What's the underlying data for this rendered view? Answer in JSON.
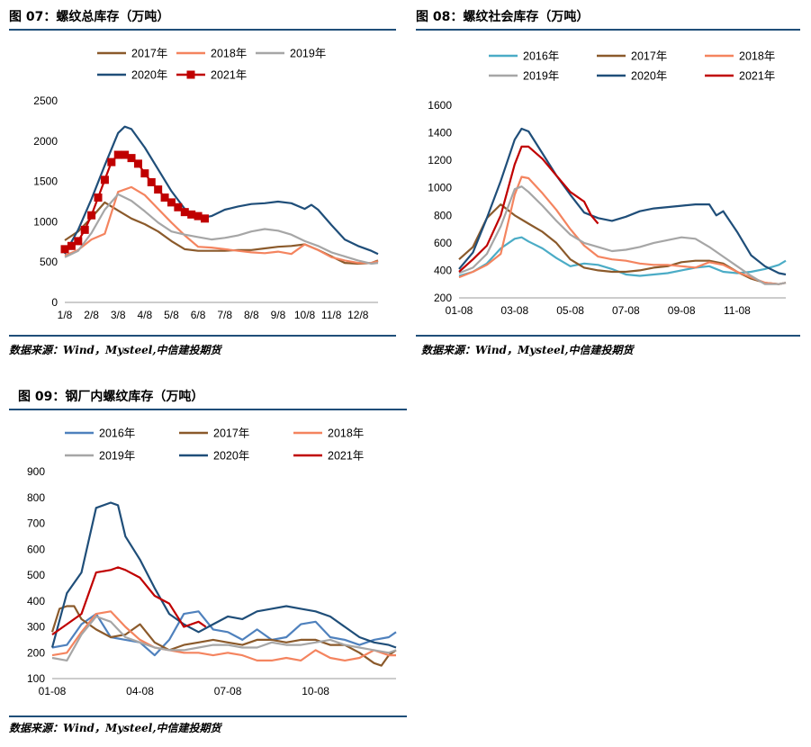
{
  "charts": [
    {
      "title": "图 07：螺纹总库存（万吨）",
      "source": "数据来源：Wind，Mysteel,中信建投期货"
    },
    {
      "title": "图 08：螺纹社会库存（万吨）",
      "source": "数据来源：Wind，Mysteel,中信建投期货"
    },
    {
      "title": "图 09：钢厂内螺纹库存（万吨）",
      "source": "数据来源：Wind，Mysteel,中信建投期货"
    }
  ],
  "chart_data": [
    {
      "type": "line",
      "title": "图 07：螺纹总库存（万吨）",
      "xlabel": "",
      "ylabel": "",
      "x_ticks": [
        "1/8",
        "2/8",
        "3/8",
        "4/8",
        "5/8",
        "6/8",
        "7/8",
        "8/8",
        "9/8",
        "10/8",
        "11/8",
        "12/8"
      ],
      "x_range": [
        1,
        12.75
      ],
      "y_ticks": [
        0,
        500,
        1000,
        1500,
        2000,
        2500
      ],
      "ylim": [
        0,
        2500
      ],
      "legend": "top",
      "series": [
        {
          "name": "2017年",
          "color": "#8b5a2b",
          "marker": "none",
          "x": [
            1,
            1.5,
            2,
            2.5,
            3,
            3.5,
            4,
            4.5,
            5,
            5.5,
            6,
            6.5,
            7,
            7.5,
            8,
            8.5,
            9,
            9.5,
            10,
            10.5,
            11,
            11.5,
            12,
            12.5,
            12.75
          ],
          "y": [
            770,
            880,
            1050,
            1240,
            1140,
            1040,
            970,
            880,
            760,
            660,
            640,
            640,
            640,
            650,
            650,
            670,
            690,
            700,
            720,
            650,
            570,
            490,
            480,
            490,
            520
          ]
        },
        {
          "name": "2018年",
          "color": "#f4845f",
          "marker": "none",
          "x": [
            1,
            1.5,
            2,
            2.5,
            3,
            3.5,
            4,
            4.5,
            5,
            5.5,
            6,
            6.5,
            7,
            7.5,
            8,
            8.5,
            9,
            9.5,
            10,
            10.5,
            11,
            11.5,
            12,
            12.5,
            12.75
          ],
          "y": [
            580,
            650,
            780,
            850,
            1370,
            1430,
            1330,
            1160,
            990,
            830,
            690,
            680,
            660,
            640,
            620,
            610,
            630,
            600,
            720,
            650,
            560,
            520,
            490,
            490,
            510
          ]
        },
        {
          "name": "2019年",
          "color": "#a6a6a6",
          "marker": "none",
          "x": [
            1,
            1.5,
            2,
            2.5,
            3,
            3.5,
            4,
            4.5,
            5,
            5.5,
            6,
            6.5,
            7,
            7.5,
            8,
            8.5,
            9,
            9.5,
            10,
            10.5,
            11,
            11.5,
            12,
            12.5,
            12.75
          ],
          "y": [
            560,
            640,
            860,
            1150,
            1340,
            1260,
            1130,
            990,
            880,
            840,
            810,
            780,
            800,
            830,
            880,
            910,
            890,
            840,
            760,
            700,
            620,
            570,
            520,
            480,
            490
          ]
        },
        {
          "name": "2020年",
          "color": "#1f4e79",
          "marker": "none",
          "x": [
            1,
            1.5,
            2,
            2.5,
            3,
            3.25,
            3.5,
            4,
            4.5,
            5,
            5.5,
            6,
            6.5,
            7,
            7.5,
            8,
            8.5,
            9,
            9.5,
            10,
            10.25,
            10.5,
            11,
            11.5,
            12,
            12.5,
            12.75
          ],
          "y": [
            600,
            900,
            1280,
            1700,
            2100,
            2180,
            2150,
            1920,
            1650,
            1380,
            1160,
            1040,
            1070,
            1150,
            1190,
            1220,
            1230,
            1250,
            1230,
            1160,
            1210,
            1150,
            960,
            780,
            700,
            640,
            600
          ]
        },
        {
          "name": "2021年",
          "color": "#c00000",
          "marker": "square",
          "x": [
            1,
            1.25,
            1.5,
            1.75,
            2,
            2.25,
            2.5,
            2.75,
            3,
            3.25,
            3.5,
            3.75,
            4,
            4.25,
            4.5,
            4.75,
            5,
            5.25,
            5.5,
            5.75,
            6,
            6.25
          ],
          "y": [
            660,
            700,
            760,
            900,
            1080,
            1300,
            1520,
            1740,
            1830,
            1830,
            1790,
            1720,
            1600,
            1490,
            1400,
            1300,
            1240,
            1180,
            1120,
            1090,
            1070,
            1040
          ]
        }
      ]
    },
    {
      "type": "line",
      "title": "图 08：螺纹社会库存（万吨）",
      "xlabel": "",
      "ylabel": "",
      "x_ticks": [
        "01-08",
        "03-08",
        "05-08",
        "07-08",
        "09-08",
        "11-08"
      ],
      "x_range": [
        1,
        12.75
      ],
      "y_ticks": [
        200,
        400,
        600,
        800,
        1000,
        1200,
        1400,
        1600
      ],
      "ylim": [
        200,
        1600
      ],
      "legend": "top",
      "series": [
        {
          "name": "2016年",
          "color": "#4bacc6",
          "marker": "none",
          "x": [
            1,
            1.5,
            2,
            2.5,
            3,
            3.25,
            3.5,
            4,
            4.5,
            5,
            5.5,
            6,
            6.5,
            7,
            7.5,
            8,
            8.5,
            9,
            9.5,
            10,
            10.5,
            11,
            11.5,
            12,
            12.5,
            12.75
          ],
          "y": [
            360,
            390,
            450,
            560,
            630,
            640,
            610,
            560,
            490,
            430,
            450,
            440,
            410,
            370,
            360,
            370,
            380,
            400,
            420,
            430,
            390,
            380,
            390,
            410,
            440,
            470
          ]
        },
        {
          "name": "2017年",
          "color": "#8b5a2b",
          "marker": "none",
          "x": [
            1,
            1.5,
            2,
            2.5,
            3,
            3.5,
            4,
            4.5,
            5,
            5.5,
            6,
            6.5,
            7,
            7.5,
            8,
            8.5,
            9,
            9.5,
            10,
            10.5,
            11,
            11.5,
            12,
            12.5,
            12.75
          ],
          "y": [
            480,
            570,
            780,
            880,
            800,
            740,
            680,
            600,
            480,
            420,
            400,
            390,
            390,
            400,
            420,
            430,
            460,
            470,
            470,
            450,
            390,
            340,
            310,
            300,
            310
          ]
        },
        {
          "name": "2018年",
          "color": "#f4845f",
          "marker": "none",
          "x": [
            1,
            1.5,
            2,
            2.5,
            3,
            3.25,
            3.5,
            4,
            4.5,
            5,
            5.5,
            6,
            6.5,
            7,
            7.5,
            8,
            8.5,
            9,
            9.5,
            10,
            10.5,
            11,
            11.5,
            12,
            12.5,
            12.75
          ],
          "y": [
            350,
            390,
            440,
            520,
            950,
            1080,
            1070,
            960,
            840,
            700,
            580,
            500,
            480,
            470,
            450,
            440,
            440,
            430,
            420,
            460,
            440,
            390,
            350,
            310,
            300,
            310
          ]
        },
        {
          "name": "2019年",
          "color": "#a6a6a6",
          "marker": "none",
          "x": [
            1,
            1.5,
            2,
            2.5,
            3,
            3.25,
            3.5,
            4,
            4.5,
            5,
            5.5,
            6,
            6.5,
            7,
            7.5,
            8,
            8.5,
            9,
            9.5,
            10,
            10.5,
            11,
            11.5,
            12,
            12.5,
            12.75
          ],
          "y": [
            380,
            420,
            520,
            720,
            990,
            1010,
            970,
            870,
            760,
            660,
            600,
            570,
            540,
            550,
            570,
            600,
            620,
            640,
            630,
            570,
            500,
            430,
            360,
            300,
            300,
            310
          ]
        },
        {
          "name": "2020年",
          "color": "#1f4e79",
          "marker": "none",
          "x": [
            1,
            1.5,
            2,
            2.5,
            3,
            3.25,
            3.5,
            4,
            4.5,
            5,
            5.5,
            6,
            6.5,
            7,
            7.5,
            8,
            8.5,
            9,
            9.5,
            10,
            10.25,
            10.5,
            11,
            11.5,
            12,
            12.5,
            12.75
          ],
          "y": [
            410,
            530,
            780,
            1050,
            1350,
            1430,
            1410,
            1250,
            1090,
            950,
            820,
            780,
            760,
            790,
            830,
            850,
            860,
            870,
            880,
            880,
            800,
            830,
            680,
            510,
            430,
            380,
            370
          ]
        },
        {
          "name": "2021年",
          "color": "#c00000",
          "marker": "none",
          "x": [
            1,
            1.5,
            2,
            2.5,
            3,
            3.25,
            3.5,
            4,
            4.5,
            5,
            5.5,
            5.75,
            6
          ],
          "y": [
            390,
            480,
            580,
            800,
            1170,
            1300,
            1300,
            1210,
            1090,
            970,
            900,
            800,
            740
          ]
        }
      ]
    },
    {
      "type": "line",
      "title": "图 09：钢厂内螺纹库存（万吨）",
      "xlabel": "",
      "ylabel": "",
      "x_ticks": [
        "01-08",
        "04-08",
        "07-08",
        "10-08"
      ],
      "x_range": [
        1,
        12.75
      ],
      "y_ticks": [
        100,
        200,
        300,
        400,
        500,
        600,
        700,
        800,
        900
      ],
      "ylim": [
        100,
        900
      ],
      "legend": "top",
      "series": [
        {
          "name": "2016年",
          "color": "#4f81bd",
          "marker": "none",
          "x": [
            1,
            1.5,
            2,
            2.5,
            3,
            3.5,
            4,
            4.5,
            5,
            5.5,
            6,
            6.5,
            7,
            7.5,
            8,
            8.5,
            9,
            9.5,
            10,
            10.5,
            11,
            11.5,
            12,
            12.5,
            12.75
          ],
          "y": [
            220,
            230,
            310,
            350,
            260,
            250,
            240,
            190,
            250,
            350,
            360,
            290,
            280,
            250,
            290,
            250,
            260,
            310,
            320,
            260,
            250,
            230,
            250,
            260,
            280
          ]
        },
        {
          "name": "2017年",
          "color": "#8b5a2b",
          "marker": "none",
          "x": [
            1,
            1.25,
            1.5,
            1.75,
            2,
            2.5,
            3,
            3.5,
            4,
            4.5,
            5,
            5.5,
            6,
            6.5,
            7,
            7.5,
            8,
            8.5,
            9,
            9.5,
            10,
            10.5,
            11,
            11.5,
            12,
            12.25,
            12.5,
            12.75
          ],
          "y": [
            280,
            370,
            380,
            380,
            330,
            290,
            260,
            270,
            310,
            240,
            210,
            230,
            240,
            250,
            240,
            230,
            250,
            250,
            240,
            250,
            250,
            230,
            230,
            200,
            160,
            150,
            190,
            210
          ]
        },
        {
          "name": "2018年",
          "color": "#f4845f",
          "marker": "none",
          "x": [
            1,
            1.5,
            2,
            2.5,
            3,
            3.5,
            4,
            4.5,
            5,
            5.5,
            6,
            6.5,
            7,
            7.5,
            8,
            8.5,
            9,
            9.5,
            10,
            10.5,
            11,
            11.5,
            12,
            12.5,
            12.75
          ],
          "y": [
            190,
            200,
            280,
            350,
            360,
            300,
            250,
            220,
            210,
            200,
            200,
            190,
            200,
            190,
            170,
            170,
            180,
            170,
            210,
            180,
            170,
            180,
            210,
            190,
            190
          ]
        },
        {
          "name": "2019年",
          "color": "#a6a6a6",
          "marker": "none",
          "x": [
            1,
            1.5,
            2,
            2.5,
            3,
            3.5,
            4,
            4.5,
            5,
            5.5,
            6,
            6.5,
            7,
            7.5,
            8,
            8.5,
            9,
            9.5,
            10,
            10.5,
            11,
            11.5,
            12,
            12.5,
            12.75
          ],
          "y": [
            180,
            170,
            270,
            340,
            320,
            260,
            240,
            220,
            210,
            210,
            220,
            230,
            230,
            220,
            220,
            240,
            230,
            230,
            240,
            250,
            230,
            220,
            210,
            200,
            210
          ]
        },
        {
          "name": "2020年",
          "color": "#1f4e79",
          "marker": "none",
          "x": [
            1,
            1.5,
            2,
            2.5,
            3,
            3.25,
            3.5,
            4,
            4.5,
            5,
            5.5,
            6,
            6.5,
            7,
            7.5,
            8,
            8.5,
            9,
            9.5,
            10,
            10.5,
            11,
            11.5,
            12,
            12.5,
            12.75
          ],
          "y": [
            220,
            430,
            510,
            760,
            780,
            770,
            650,
            560,
            450,
            350,
            310,
            280,
            310,
            340,
            330,
            360,
            370,
            380,
            370,
            360,
            340,
            300,
            260,
            240,
            230,
            220
          ]
        },
        {
          "name": "2021年",
          "color": "#c00000",
          "marker": "none",
          "x": [
            1,
            1.5,
            2,
            2.5,
            3,
            3.25,
            3.5,
            4,
            4.5,
            5,
            5.5,
            6,
            6.25
          ],
          "y": [
            270,
            310,
            350,
            510,
            520,
            530,
            520,
            490,
            420,
            390,
            300,
            320,
            300
          ]
        }
      ]
    }
  ]
}
